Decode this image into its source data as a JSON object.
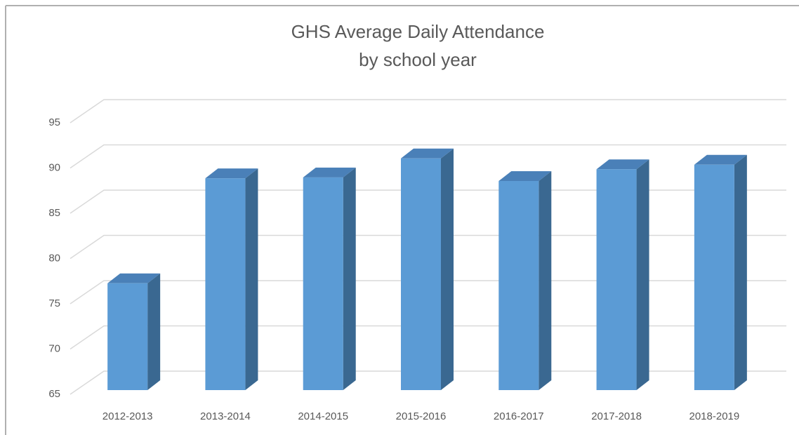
{
  "chart_data": {
    "type": "bar3d",
    "title": "GHS Average Daily Attendance",
    "subtitle": "by school year",
    "categories": [
      "2012-2013",
      "2013-2014",
      "2014-2015",
      "2015-2016",
      "2016-2017",
      "2017-2018",
      "2018-2019"
    ],
    "values": [
      76.8,
      88.4,
      88.5,
      90.6,
      88.1,
      89.4,
      89.9
    ],
    "color": "#5b9bd5",
    "side_color": "#3a6891",
    "top_color": "#4a80b8",
    "ylim": [
      65,
      95
    ],
    "yticks": [
      65,
      70,
      75,
      80,
      85,
      90,
      95
    ],
    "grid": true
  }
}
